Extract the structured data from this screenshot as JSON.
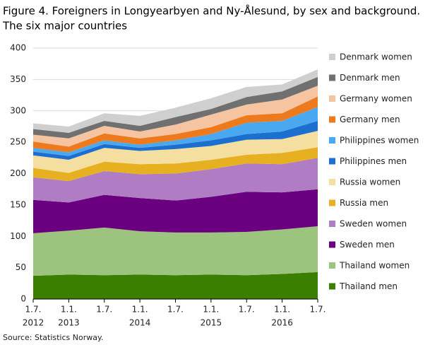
{
  "chart_data": {
    "type": "stacked_area",
    "title": "Figure 4. Foreigners in Longyearbyen and Ny-Ålesund, by sex and background.",
    "subtitle": "The six major countries",
    "source": "Source: Statistics Norway.",
    "categories": [
      "1.7.",
      "1.1.",
      "1.7.",
      "1.1.",
      "1.7.",
      "1.1.",
      "1.7.",
      "1.1.",
      "1.7."
    ],
    "category_years": [
      "2012",
      "2013",
      null,
      "2014",
      null,
      "2015",
      null,
      "2016",
      null
    ],
    "ylim": [
      0,
      400
    ],
    "yticks": [
      0,
      50,
      100,
      150,
      200,
      250,
      300,
      350,
      400
    ],
    "grid": true,
    "legend": "right",
    "series": [
      {
        "name": "Thailand men",
        "color": "#3a7f00",
        "values": [
          37,
          39,
          38,
          39,
          38,
          39,
          38,
          40,
          43
        ]
      },
      {
        "name": "Thailand women",
        "color": "#9cc47e",
        "values": [
          68,
          70,
          76,
          69,
          68,
          67,
          69,
          71,
          73
        ]
      },
      {
        "name": "Sweden men",
        "color": "#6a0080",
        "values": [
          53,
          45,
          52,
          53,
          51,
          57,
          64,
          59,
          59
        ]
      },
      {
        "name": "Sweden women",
        "color": "#b07cc4",
        "values": [
          36,
          34,
          38,
          38,
          43,
          44,
          45,
          45,
          50
        ]
      },
      {
        "name": "Russia men",
        "color": "#e6b020",
        "values": [
          15,
          13,
          15,
          16,
          16,
          15,
          14,
          18,
          17
        ]
      },
      {
        "name": "Russia women",
        "color": "#f5dfa0",
        "values": [
          20,
          21,
          22,
          21,
          23,
          22,
          24,
          22,
          26
        ]
      },
      {
        "name": "Philippines men",
        "color": "#1c6fce",
        "values": [
          6,
          6,
          6,
          5,
          7,
          9,
          9,
          12,
          16
        ]
      },
      {
        "name": "Philippines women",
        "color": "#4aa8f0",
        "values": [
          6,
          6,
          6,
          5,
          7,
          10,
          18,
          17,
          22
        ]
      },
      {
        "name": "Germany men",
        "color": "#ee7a1e",
        "values": [
          10,
          9,
          11,
          10,
          10,
          11,
          12,
          12,
          17
        ]
      },
      {
        "name": "Germany women",
        "color": "#f6c4a0",
        "values": [
          11,
          13,
          12,
          11,
          15,
          20,
          17,
          22,
          17
        ]
      },
      {
        "name": "Denmark men",
        "color": "#707070",
        "values": [
          9,
          9,
          8,
          9,
          12,
          9,
          12,
          13,
          14
        ]
      },
      {
        "name": "Denmark women",
        "color": "#cfcfcf",
        "values": [
          9,
          10,
          12,
          16,
          15,
          17,
          16,
          11,
          12
        ]
      }
    ]
  }
}
